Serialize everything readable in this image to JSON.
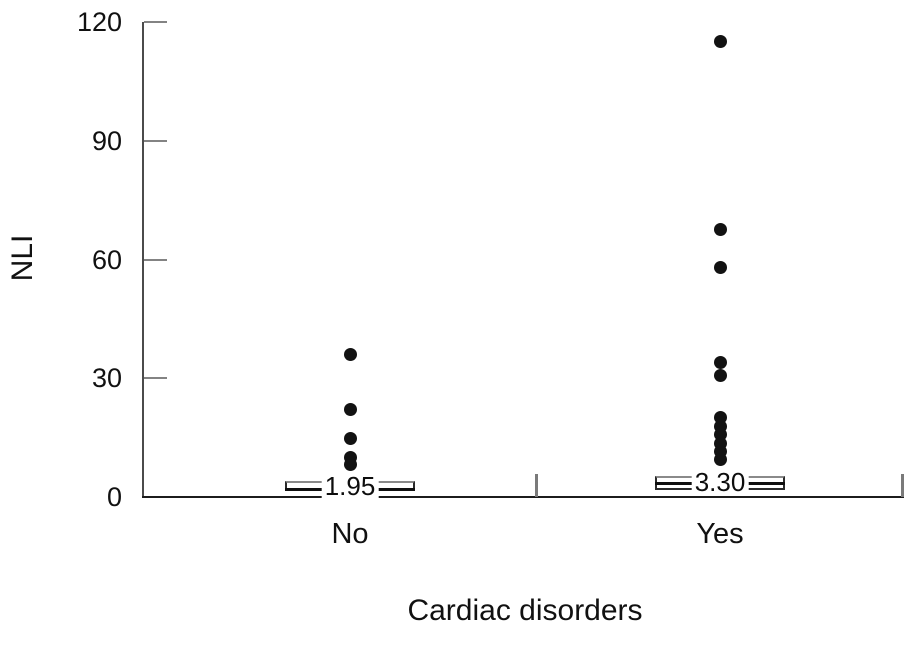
{
  "figure": {
    "background": "#ffffff"
  },
  "colors": {
    "point": "#121212",
    "y_axis": "#4b4b4b",
    "x_axis": "#1c1c1c",
    "tick": "#838383",
    "text": "#111111"
  },
  "chart_data": {
    "type": "box",
    "orientation": "vertical",
    "title": "",
    "xlabel": "Cardiac disorders",
    "ylabel": "NLI",
    "ylim": [
      0,
      120
    ],
    "yticks": [
      0,
      30,
      60,
      90,
      120
    ],
    "categories": [
      "No",
      "Yes"
    ],
    "grid": false,
    "legend": null,
    "groups": [
      {
        "category": "No",
        "median": 1.95,
        "median_label": "1.95",
        "q1": 1.4,
        "q3": 4.0,
        "outliers": [
          36,
          22,
          14.7,
          10.1,
          8.3
        ]
      },
      {
        "category": "Yes",
        "median": 3.3,
        "median_label": "3.30",
        "q1": 1.8,
        "q3": 5.3,
        "outliers": [
          115,
          67.7,
          57.9,
          34.1,
          30.6,
          20.2,
          17.9,
          15.9,
          13.4,
          11.4,
          9.6
        ]
      }
    ]
  }
}
